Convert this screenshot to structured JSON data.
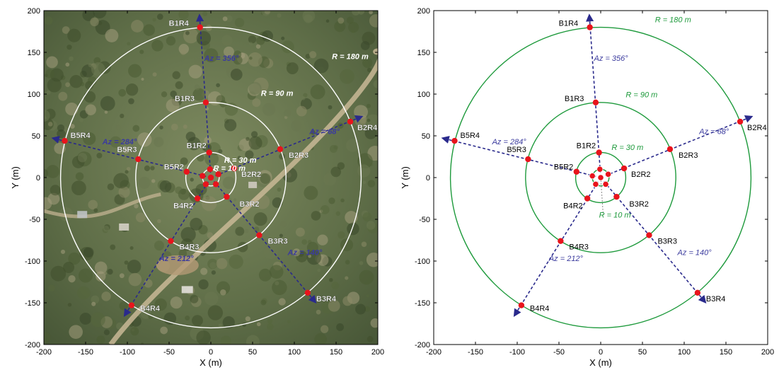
{
  "colors": {
    "ring_photo": "#ffffff",
    "ring_plot": "#1e9a3c",
    "array_line": "#2a2a8c",
    "sensor": "#e8141c",
    "az_text": "#3b3b9e",
    "photo_base": "#5f6e48"
  },
  "chart_data": [
    {
      "type": "scatter",
      "background": "aerial-photo",
      "xlabel": "X (m)",
      "ylabel": "Y (m)",
      "xlim": [
        -200,
        200
      ],
      "ylim": [
        -200,
        200
      ],
      "xticks": [
        -200,
        -150,
        -100,
        -50,
        0,
        50,
        100,
        150,
        200
      ],
      "yticks": [
        -200,
        -150,
        -100,
        -50,
        0,
        50,
        100,
        150,
        200
      ],
      "grid": false,
      "rings": [
        {
          "radius": 10,
          "label": "R = 10 m"
        },
        {
          "radius": 30,
          "label": "R = 30 m"
        },
        {
          "radius": 90,
          "label": "R = 90 m"
        },
        {
          "radius": 180,
          "label": "R = 180 m"
        }
      ],
      "branches": [
        {
          "label": "Az = 356°",
          "azimuth": 356
        },
        {
          "label": "Az = 68°",
          "azimuth": 68
        },
        {
          "label": "Az = 140°",
          "azimuth": 140
        },
        {
          "label": "Az = 212°",
          "azimuth": 212
        },
        {
          "label": "Az = 284°",
          "azimuth": 284
        }
      ],
      "points": [
        {
          "label": "B1R2",
          "x": -2,
          "y": 30
        },
        {
          "label": "B1R3",
          "x": -6,
          "y": 90
        },
        {
          "label": "B1R4",
          "x": -13,
          "y": 180
        },
        {
          "label": "B2R2",
          "x": 28,
          "y": 11
        },
        {
          "label": "B2R3",
          "x": 83,
          "y": 34
        },
        {
          "label": "B2R4",
          "x": 167,
          "y": 67
        },
        {
          "label": "B3R2",
          "x": 19,
          "y": -23
        },
        {
          "label": "B3R3",
          "x": 58,
          "y": -69
        },
        {
          "label": "B3R4",
          "x": 116,
          "y": -138
        },
        {
          "label": "B4R2",
          "x": -16,
          "y": -25
        },
        {
          "label": "B4R3",
          "x": -48,
          "y": -76
        },
        {
          "label": "B4R4",
          "x": -95,
          "y": -153
        },
        {
          "label": "B5R2",
          "x": -29,
          "y": 7
        },
        {
          "label": "B5R3",
          "x": -87,
          "y": 22
        },
        {
          "label": "B5R4",
          "x": -175,
          "y": 44
        }
      ],
      "inner_points": [
        {
          "x": 0,
          "y": 0
        },
        {
          "x": -1,
          "y": 10
        },
        {
          "x": 9,
          "y": 4
        },
        {
          "x": 6,
          "y": -8
        },
        {
          "x": -6,
          "y": -8
        },
        {
          "x": -10,
          "y": 2
        }
      ]
    },
    {
      "type": "scatter",
      "background": "white",
      "xlabel": "X (m)",
      "ylabel": "Y (m)",
      "xlim": [
        -200,
        200
      ],
      "ylim": [
        -200,
        200
      ],
      "xticks": [
        -200,
        -150,
        -100,
        -50,
        0,
        50,
        100,
        150,
        200
      ],
      "yticks": [
        -200,
        -150,
        -100,
        -50,
        0,
        50,
        100,
        150,
        200
      ],
      "grid": false,
      "rings": [
        {
          "radius": 10,
          "label": "R = 10 m"
        },
        {
          "radius": 30,
          "label": "R = 30 m"
        },
        {
          "radius": 90,
          "label": "R = 90 m"
        },
        {
          "radius": 180,
          "label": "R = 180 m"
        }
      ],
      "branches": [
        {
          "label": "Az = 356°",
          "azimuth": 356
        },
        {
          "label": "Az = 68°",
          "azimuth": 68
        },
        {
          "label": "Az = 140°",
          "azimuth": 140
        },
        {
          "label": "Az = 212°",
          "azimuth": 212
        },
        {
          "label": "Az = 284°",
          "azimuth": 284
        }
      ],
      "points": [
        {
          "label": "B1R2",
          "x": -2,
          "y": 30
        },
        {
          "label": "B1R3",
          "x": -6,
          "y": 90
        },
        {
          "label": "B1R4",
          "x": -13,
          "y": 180
        },
        {
          "label": "B2R2",
          "x": 28,
          "y": 11
        },
        {
          "label": "B2R3",
          "x": 83,
          "y": 34
        },
        {
          "label": "B2R4",
          "x": 167,
          "y": 67
        },
        {
          "label": "B3R2",
          "x": 19,
          "y": -23
        },
        {
          "label": "B3R3",
          "x": 58,
          "y": -69
        },
        {
          "label": "B3R4",
          "x": 116,
          "y": -138
        },
        {
          "label": "B4R2",
          "x": -16,
          "y": -25
        },
        {
          "label": "B4R3",
          "x": -48,
          "y": -76
        },
        {
          "label": "B4R4",
          "x": -95,
          "y": -153
        },
        {
          "label": "B5R2",
          "x": -29,
          "y": 7
        },
        {
          "label": "B5R3",
          "x": -87,
          "y": 22
        },
        {
          "label": "B5R4",
          "x": -175,
          "y": 44
        }
      ],
      "inner_points": [
        {
          "x": 0,
          "y": 0
        },
        {
          "x": -1,
          "y": 10
        },
        {
          "x": 9,
          "y": 4
        },
        {
          "x": 6,
          "y": -8
        },
        {
          "x": -6,
          "y": -8
        },
        {
          "x": -10,
          "y": 2
        }
      ]
    }
  ]
}
